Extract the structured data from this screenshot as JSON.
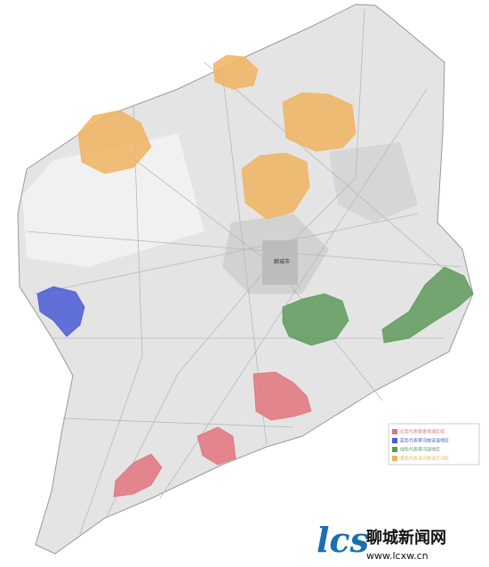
{
  "map": {
    "city_label": "聊城市",
    "legend": [
      {
        "text": "红色代表黄金塔湖区域",
        "color": "#e2747e"
      },
      {
        "text": "蓝色代表黄河故道湿地区",
        "color": "#4a5bd6"
      },
      {
        "text": "绿色代表黄河湿地区",
        "color": "#5e9a5a"
      },
      {
        "text": "黄色代表运河故道北河区",
        "color": "#f0b460"
      }
    ]
  },
  "watermark": {
    "name": "聊城新闻网",
    "url": "www.lcxw.cn"
  }
}
